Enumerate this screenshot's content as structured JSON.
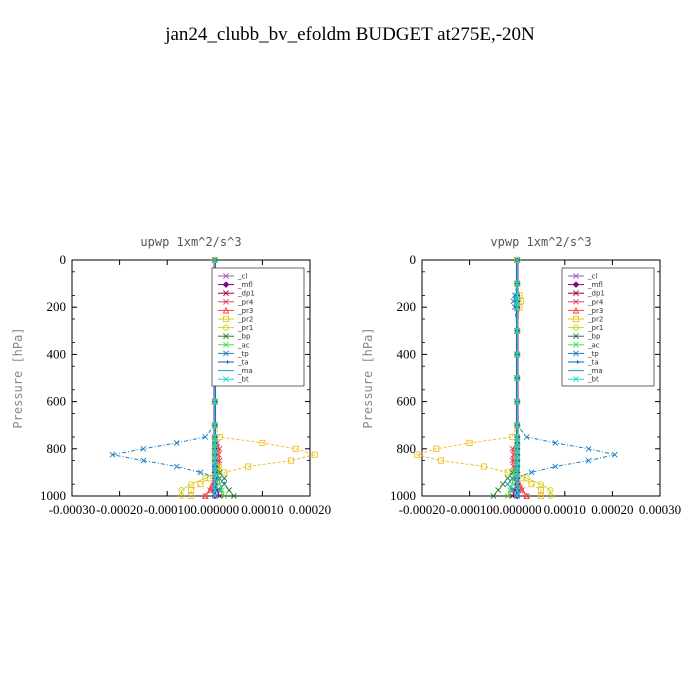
{
  "title": "jan24_clubb_bv_efoldm  BUDGET at275E,-20N",
  "chart_data": [
    {
      "type": "line",
      "title": "upwp   1xm^2/s^3",
      "ylabel": "Pressure [hPa]",
      "xlim": [
        -0.0003,
        0.0002
      ],
      "ylim": [
        1000,
        0
      ],
      "xticks": [
        -0.0003,
        -0.0002,
        -0.0001,
        0.0,
        0.0001,
        0.0002
      ],
      "xtick_labels": [
        "-0.00030",
        "-0.00020",
        "-0.00010",
        "0.000000",
        "0.00010",
        "0.00020"
      ],
      "yticks": [
        0,
        200,
        400,
        600,
        800,
        1000
      ],
      "yaxis_inverted": true,
      "legend_position": "upper-right",
      "y": [
        0,
        100,
        200,
        300,
        400,
        500,
        600,
        700,
        750,
        775,
        800,
        825,
        850,
        875,
        900,
        925,
        950,
        975,
        1000
      ],
      "series": [
        {
          "name": "_cl",
          "color": "#9b59b6",
          "marker": "x",
          "values": [
            0,
            0,
            0,
            0,
            0,
            0,
            0,
            0,
            0,
            0,
            0,
            0,
            0,
            0,
            0,
            0,
            0,
            0,
            0
          ]
        },
        {
          "name": "_mfl",
          "color": "#800080",
          "marker": "diamond",
          "values": [
            0,
            0,
            0,
            0,
            0,
            0,
            0,
            0,
            0,
            0,
            0,
            0,
            0,
            0,
            0,
            0,
            0,
            0,
            0
          ]
        },
        {
          "name": "_dp1",
          "color": "#a0003c",
          "marker": "x",
          "values": [
            0,
            0,
            0,
            0,
            0,
            0,
            0,
            0,
            0,
            0,
            0,
            0,
            0,
            0,
            0,
            0,
            0,
            5e-06,
            1e-05
          ]
        },
        {
          "name": "_pr4",
          "color": "#e0405a",
          "marker": "x",
          "values": [
            0,
            0,
            0,
            0,
            0,
            0,
            0,
            0,
            0,
            5e-06,
            1e-05,
            8e-06,
            1e-05,
            8e-06,
            5e-06,
            3e-06,
            0,
            -1e-05,
            -2e-05
          ]
        },
        {
          "name": "_pr3",
          "color": "#ff4040",
          "marker": "triangle",
          "values": [
            0,
            0,
            0,
            0,
            0,
            0,
            0,
            0,
            0,
            0,
            5e-06,
            5e-06,
            5e-06,
            3e-06,
            0,
            0,
            -5e-06,
            -1e-05,
            -2e-05
          ]
        },
        {
          "name": "_pr2",
          "color": "#f0c020",
          "marker": "square",
          "values": [
            0,
            0,
            0,
            0,
            0,
            0,
            0,
            0,
            1e-05,
            0.0001,
            0.00017,
            0.00021,
            0.00016,
            7e-05,
            2e-05,
            -1e-05,
            -3e-05,
            -5e-05,
            -5e-05
          ]
        },
        {
          "name": "_pr1",
          "color": "#d4d420",
          "marker": "circle",
          "values": [
            0,
            0,
            0,
            0,
            0,
            0,
            0,
            0,
            0,
            0,
            0,
            0,
            0,
            1e-05,
            5e-06,
            -2e-05,
            -5e-05,
            -7e-05,
            -7e-05
          ]
        },
        {
          "name": "_bp",
          "color": "#208020",
          "marker": "x",
          "values": [
            0,
            0,
            0,
            0,
            0,
            0,
            0,
            0,
            0,
            0,
            0,
            0,
            0,
            0,
            1e-05,
            2e-05,
            2e-05,
            3e-05,
            4e-05
          ]
        },
        {
          "name": "_ac",
          "color": "#40e040",
          "marker": "x",
          "values": [
            0,
            0,
            0,
            0,
            0,
            0,
            0,
            0,
            0,
            0,
            0,
            0,
            0,
            0,
            5e-06,
            1e-05,
            1e-05,
            1.5e-05,
            2e-05
          ]
        },
        {
          "name": "_tp",
          "color": "#2080c0",
          "marker": "x",
          "values": [
            0,
            0,
            0,
            0,
            0,
            0,
            0,
            0,
            -2e-05,
            -8e-05,
            -0.00015,
            -0.000215,
            -0.00015,
            -8e-05,
            -3e-05,
            1e-05,
            2e-05,
            1e-05,
            0
          ]
        },
        {
          "name": "_ta",
          "color": "#1060a0",
          "marker": "arrow",
          "values": [
            0,
            0,
            0,
            0,
            0,
            0,
            0,
            0,
            0,
            0,
            0,
            0,
            0,
            0,
            0,
            0,
            0,
            0,
            0
          ]
        },
        {
          "name": "_ma",
          "color": "#20a0c0",
          "marker": "none",
          "values": [
            0,
            0,
            0,
            0,
            0,
            0,
            0,
            0,
            0,
            0,
            0,
            0,
            0,
            0,
            0,
            0,
            0,
            0,
            0
          ]
        },
        {
          "name": "_bt",
          "color": "#20d0e0",
          "marker": "x",
          "values": [
            0,
            0,
            0,
            0,
            0,
            0,
            0,
            0,
            0,
            0,
            0,
            0,
            0,
            0,
            0,
            0,
            0,
            0,
            0
          ]
        }
      ]
    },
    {
      "type": "line",
      "title": "vpwp   1xm^2/s^3",
      "ylabel": "Pressure [hPa]",
      "xlim": [
        -0.0002,
        0.0003
      ],
      "ylim": [
        1000,
        0
      ],
      "xticks": [
        -0.0002,
        -0.0001,
        0.0,
        0.0001,
        0.0002,
        0.0003
      ],
      "xtick_labels": [
        "-0.00020",
        "-0.00010",
        "0.000000",
        "0.00010",
        "0.00020",
        "0.00030"
      ],
      "yticks": [
        0,
        200,
        400,
        600,
        800,
        1000
      ],
      "yaxis_inverted": true,
      "legend_position": "upper-right",
      "y": [
        0,
        100,
        150,
        175,
        200,
        300,
        400,
        500,
        600,
        700,
        750,
        775,
        800,
        825,
        850,
        875,
        900,
        925,
        950,
        975,
        1000
      ],
      "series": [
        {
          "name": "_cl",
          "color": "#9b59b6",
          "marker": "x",
          "values": [
            0,
            0,
            0,
            0,
            0,
            0,
            0,
            0,
            0,
            0,
            0,
            0,
            0,
            0,
            0,
            0,
            0,
            0,
            0,
            0,
            0
          ]
        },
        {
          "name": "_mfl",
          "color": "#800080",
          "marker": "diamond",
          "values": [
            0,
            0,
            0,
            0,
            0,
            0,
            0,
            0,
            0,
            0,
            0,
            0,
            0,
            0,
            0,
            0,
            0,
            0,
            0,
            0,
            0
          ]
        },
        {
          "name": "_dp1",
          "color": "#a0003c",
          "marker": "x",
          "values": [
            0,
            0,
            0,
            0,
            0,
            0,
            0,
            0,
            0,
            0,
            0,
            0,
            0,
            0,
            0,
            0,
            0,
            0,
            0,
            -5e-06,
            -1e-05
          ]
        },
        {
          "name": "_pr4",
          "color": "#e0405a",
          "marker": "x",
          "values": [
            0,
            0,
            0,
            0,
            0,
            0,
            0,
            0,
            0,
            0,
            0,
            0,
            -1e-05,
            -8e-06,
            -1e-05,
            -8e-06,
            -5e-06,
            -3e-06,
            0,
            1e-05,
            2e-05
          ]
        },
        {
          "name": "_pr3",
          "color": "#ff4040",
          "marker": "triangle",
          "values": [
            0,
            0,
            0,
            0,
            0,
            0,
            0,
            0,
            0,
            0,
            0,
            0,
            -5e-06,
            -5e-06,
            -5e-06,
            -3e-06,
            0,
            0,
            5e-06,
            1e-05,
            2e-05
          ]
        },
        {
          "name": "_pr2",
          "color": "#f0c020",
          "marker": "square",
          "values": [
            0,
            0,
            5e-06,
            8e-06,
            5e-06,
            0,
            0,
            0,
            0,
            0,
            -1e-05,
            -0.0001,
            -0.00017,
            -0.00021,
            -0.00016,
            -7e-05,
            -2e-05,
            1e-05,
            3e-05,
            5e-05,
            5e-05
          ]
        },
        {
          "name": "_pr1",
          "color": "#d4d420",
          "marker": "circle",
          "values": [
            0,
            0,
            0,
            0,
            0,
            0,
            0,
            0,
            0,
            0,
            0,
            0,
            0,
            0,
            0,
            0,
            -1e-05,
            2e-05,
            5e-05,
            7e-05,
            7e-05
          ]
        },
        {
          "name": "_bp",
          "color": "#208020",
          "marker": "x",
          "values": [
            0,
            0,
            0,
            0,
            0,
            0,
            0,
            0,
            0,
            0,
            0,
            0,
            0,
            0,
            0,
            0,
            -1e-05,
            -2e-05,
            -3e-05,
            -4e-05,
            -5e-05
          ]
        },
        {
          "name": "_ac",
          "color": "#40e040",
          "marker": "x",
          "values": [
            0,
            0,
            0,
            0,
            0,
            0,
            0,
            0,
            0,
            0,
            0,
            0,
            0,
            0,
            0,
            0,
            -5e-06,
            -1e-05,
            -1e-05,
            -1.5e-05,
            -2e-05
          ]
        },
        {
          "name": "_tp",
          "color": "#2080c0",
          "marker": "x",
          "values": [
            0,
            0,
            -5e-06,
            -8e-06,
            -5e-06,
            0,
            0,
            0,
            0,
            0,
            2e-05,
            8e-05,
            0.00015,
            0.000205,
            0.00015,
            8e-05,
            3e-05,
            -1e-05,
            -2e-05,
            -1e-05,
            0
          ]
        },
        {
          "name": "_ta",
          "color": "#1060a0",
          "marker": "arrow",
          "values": [
            0,
            0,
            0,
            0,
            0,
            0,
            0,
            0,
            0,
            0,
            0,
            0,
            0,
            0,
            0,
            0,
            0,
            0,
            0,
            0,
            0
          ]
        },
        {
          "name": "_ma",
          "color": "#20a0c0",
          "marker": "none",
          "values": [
            0,
            0,
            0,
            0,
            0,
            0,
            0,
            0,
            0,
            0,
            0,
            0,
            0,
            0,
            0,
            0,
            0,
            0,
            0,
            0,
            0
          ]
        },
        {
          "name": "_bt",
          "color": "#20d0e0",
          "marker": "x",
          "values": [
            0,
            0,
            0,
            0,
            0,
            0,
            0,
            0,
            0,
            0,
            0,
            0,
            0,
            0,
            0,
            0,
            0,
            0,
            0,
            0,
            0
          ]
        }
      ]
    }
  ]
}
